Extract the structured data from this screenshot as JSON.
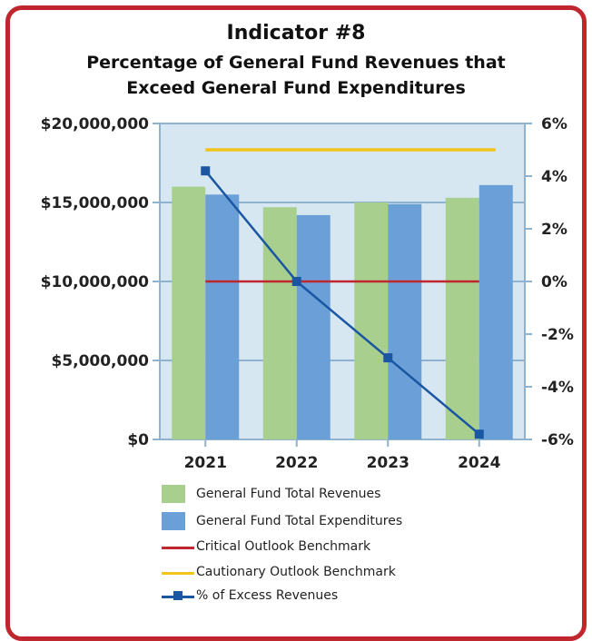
{
  "header": {
    "line1": "Indicator #8",
    "line2": "Percentage of General Fund Revenues that",
    "line3": "Exceed General Fund Expenditures"
  },
  "colors": {
    "frame": "#c0262d",
    "plot_bg": "#d6e7f2",
    "revenues": "#a9cf8e",
    "expenditures": "#6a9fd8",
    "critical": "#c0262d",
    "cautionary": "#f0c419",
    "excess": "#1a56a2",
    "axis": "#8fb3cf"
  },
  "chart_data": {
    "type": "bar",
    "categories": [
      "2021",
      "2022",
      "2023",
      "2024"
    ],
    "series": [
      {
        "name": "General Fund Total Revenues",
        "kind": "bar",
        "axis": "left",
        "values": [
          16000000,
          14700000,
          15000000,
          15300000
        ]
      },
      {
        "name": "General Fund Total Expenditures",
        "kind": "bar",
        "axis": "left",
        "values": [
          15500000,
          14200000,
          14900000,
          16100000
        ]
      },
      {
        "name": "Critical Outlook Benchmark",
        "kind": "hline",
        "axis": "right",
        "value": 0
      },
      {
        "name": "Cautionary Outlook Benchmark",
        "kind": "hline",
        "axis": "right",
        "value": 5
      },
      {
        "name": "% of Excess Revenues",
        "kind": "line",
        "axis": "right",
        "values": [
          4.2,
          0.0,
          -2.9,
          -5.8
        ]
      }
    ],
    "y_left": {
      "min": 0,
      "max": 20000000,
      "ticks": [
        "$0",
        "$5,000,000",
        "$10,000,000",
        "$15,000,000",
        "$20,000,000"
      ]
    },
    "y_right": {
      "min": -6,
      "max": 6,
      "ticks": [
        "-6%",
        "-4%",
        "-2%",
        "0%",
        "2%",
        "4%",
        "6%"
      ]
    },
    "grid": true,
    "legend_position": "bottom"
  }
}
